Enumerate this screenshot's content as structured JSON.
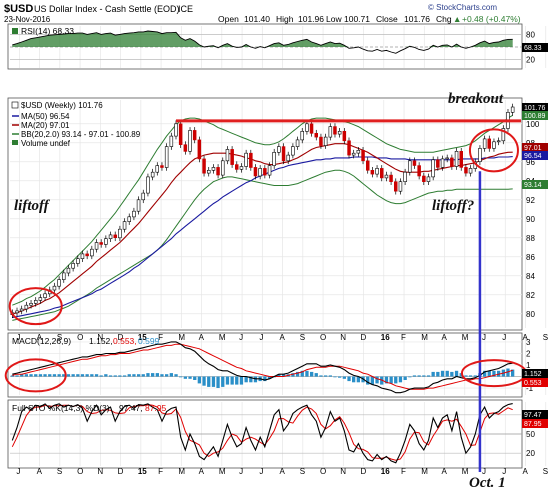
{
  "header": {
    "symbol": "$USD",
    "name": "US Dollar Index - Cash Settle (EOD)",
    "exchange": "ICE",
    "date": "23-Nov-2016",
    "open_label": "Open",
    "open": "101.40",
    "high_label": "High",
    "high": "101.96",
    "low_label": "Low",
    "low": "100.71",
    "close_label": "Close",
    "close": "101.76",
    "chg_label": "Chg",
    "chg": "+0.48 (+0.47%)",
    "brand": "© StockCharts.com",
    "chg_arrow": "▲"
  },
  "colors": {
    "candle_up": "#ffffff",
    "candle_down": "#cc0000",
    "candle_edge": "#000000",
    "ma50": "#1a1aa0",
    "ma20": "#a00000",
    "bb": "#2e7d32",
    "rsi_fill": "#2e7d32",
    "macd_hist": "#2a8fc8",
    "macd_signal": "#e00000",
    "resistance": "#e02020",
    "marker": "#3333cc",
    "ellipse": "#e01818"
  },
  "rsi_panel": {
    "legend": "RSI(14) 68.33",
    "last": "68.33",
    "ticks": [
      "80",
      "50",
      "20"
    ]
  },
  "price_panel": {
    "legend_symbol": "$USD (Weekly) 101.76",
    "legend_ma50": "MA(50) 96.54",
    "legend_ma20": "MA(20) 97.01",
    "legend_bb": "BB(20,2.0) 93.14 - 97.01 - 100.89",
    "legend_volume": "Volume undef",
    "right_badges": [
      "101.76",
      "100.89",
      "97.01",
      "96.54",
      "93.14"
    ],
    "ticks": [
      "100",
      "98",
      "96",
      "94",
      "92",
      "90",
      "88",
      "86",
      "84",
      "82",
      "80"
    ]
  },
  "macd_panel": {
    "legend_prefix": "MACD(12,26,9)",
    "legend_macd": "1.152,",
    "legend_signal": "0.553,",
    "legend_hist": "0.599",
    "ticks": [
      "3",
      "2",
      "1",
      "0",
      "-1"
    ],
    "badges": [
      "1.152",
      "0.553"
    ]
  },
  "sto_panel": {
    "legend_prefix": "Full STO %K(14,3) %D(3)",
    "legend_k": "97.47,",
    "legend_d": "87.95",
    "ticks": [
      "80",
      "50",
      "20"
    ],
    "badges": [
      "97.47",
      "87.95"
    ]
  },
  "annotations": {
    "liftoff_left": "liftoff",
    "breakout": "breakout",
    "liftoff_right": "liftoff?",
    "oct1": "Oct. 1"
  },
  "x_axis_labels": [
    "J",
    "A",
    "S",
    "O",
    "N",
    "D",
    "15",
    "F",
    "M",
    "A",
    "M",
    "J",
    "J",
    "A",
    "S",
    "O",
    "N",
    "D",
    "16",
    "F",
    "M",
    "A",
    "M",
    "J",
    "J",
    "A",
    "S",
    "O",
    "N"
  ],
  "chart_data": {
    "type": "candlestick",
    "title": "$USD US Dollar Index - Cash Settle (EOD)",
    "interval": "Weekly",
    "x_months": [
      "J",
      "A",
      "S",
      "O",
      "N",
      "D",
      "15",
      "F",
      "M",
      "A",
      "M",
      "J",
      "J",
      "A",
      "S",
      "O",
      "N",
      "D",
      "16",
      "F",
      "M",
      "A",
      "M",
      "J",
      "J",
      "A",
      "S",
      "O",
      "N"
    ],
    "price_ylim": [
      78.5,
      102.5
    ],
    "price_ticks": [
      80,
      82,
      84,
      86,
      88,
      90,
      92,
      94,
      96,
      98,
      100
    ],
    "resistance_level": 100.3,
    "last_values": {
      "close": 101.76,
      "ma50": 96.54,
      "ma20": 97.01,
      "bb_lower": 93.14,
      "bb_mid": 97.01,
      "bb_upper": 100.89
    },
    "close_series": [
      80.1,
      80.3,
      80.5,
      80.9,
      81.1,
      81.4,
      81.7,
      82.1,
      82.5,
      82.9,
      83.6,
      84.3,
      84.8,
      85.3,
      85.8,
      86.3,
      86.1,
      86.8,
      87.5,
      87.3,
      87.9,
      88.3,
      88.0,
      88.9,
      89.7,
      90.2,
      90.8,
      92.0,
      92.7,
      94.4,
      94.9,
      95.6,
      95.4,
      97.6,
      98.7,
      100.0,
      97.8,
      97.1,
      99.3,
      98.3,
      96.3,
      94.8,
      95.1,
      95.4,
      94.6,
      96.1,
      97.3,
      95.7,
      95.2,
      95.5,
      96.9,
      95.4,
      94.5,
      95.3,
      94.6,
      95.6,
      97.0,
      97.6,
      96.1,
      96.7,
      97.6,
      98.3,
      99.2,
      100.0,
      99.0,
      98.6,
      97.7,
      98.6,
      99.7,
      98.9,
      99.2,
      98.2,
      96.7,
      96.9,
      97.2,
      96.1,
      95.1,
      94.7,
      95.3,
      94.3,
      94.6,
      93.9,
      92.9,
      93.9,
      94.9,
      96.1,
      95.6,
      94.5,
      93.9,
      94.4,
      96.2,
      95.4,
      96.3,
      96.4,
      95.5,
      97.1,
      95.4,
      94.8,
      95.3,
      96.0,
      97.4,
      98.4,
      97.4,
      98.1,
      98.2,
      99.5,
      101.2,
      101.76
    ],
    "ma20": [
      80.0,
      80.1,
      80.3,
      80.5,
      80.7,
      80.9,
      81.1,
      81.4,
      81.6,
      81.9,
      82.2,
      82.6,
      83.0,
      83.4,
      83.8,
      84.2,
      84.6,
      85.0,
      85.5,
      85.9,
      86.3,
      86.7,
      87.1,
      87.5,
      88.0,
      88.5,
      89.0,
      89.5,
      90.1,
      90.7,
      91.3,
      91.9,
      92.5,
      93.1,
      93.8,
      94.4,
      94.9,
      95.4,
      95.9,
      96.3,
      96.5,
      96.7,
      96.8,
      96.9,
      96.9,
      96.9,
      96.9,
      96.8,
      96.7,
      96.6,
      96.4,
      96.3,
      96.1,
      96.0,
      95.8,
      95.7,
      95.7,
      95.8,
      95.9,
      96.0,
      96.2,
      96.4,
      96.7,
      97.0,
      97.3,
      97.5,
      97.6,
      97.7,
      97.8,
      97.9,
      97.9,
      97.9,
      97.8,
      97.6,
      97.4,
      97.2,
      97.0,
      96.7,
      96.4,
      96.1,
      95.8,
      95.5,
      95.2,
      95.0,
      94.9,
      94.9,
      94.9,
      94.9,
      95.0,
      95.0,
      95.1,
      95.2,
      95.3,
      95.4,
      95.5,
      95.6,
      95.6,
      95.7,
      95.8,
      95.9,
      96.1,
      96.3,
      96.5,
      96.6,
      96.8,
      96.9,
      97.0,
      97.01
    ],
    "ma50": [
      79.6,
      79.7,
      79.8,
      79.9,
      80.0,
      80.1,
      80.2,
      80.3,
      80.4,
      80.6,
      80.7,
      80.9,
      81.1,
      81.3,
      81.5,
      81.7,
      81.9,
      82.1,
      82.4,
      82.6,
      82.9,
      83.2,
      83.5,
      83.8,
      84.1,
      84.4,
      84.8,
      85.1,
      85.5,
      85.9,
      86.3,
      86.7,
      87.1,
      87.5,
      87.9,
      88.4,
      88.8,
      89.2,
      89.6,
      90.0,
      90.4,
      90.8,
      91.2,
      91.6,
      91.9,
      92.3,
      92.6,
      92.9,
      93.2,
      93.5,
      93.8,
      94.0,
      94.3,
      94.5,
      94.7,
      94.9,
      95.1,
      95.3,
      95.4,
      95.6,
      95.7,
      95.8,
      95.9,
      96.0,
      96.1,
      96.2,
      96.2,
      96.3,
      96.3,
      96.4,
      96.4,
      96.4,
      96.4,
      96.5,
      96.5,
      96.5,
      96.5,
      96.5,
      96.4,
      96.4,
      96.4,
      96.3,
      96.3,
      96.3,
      96.3,
      96.2,
      96.2,
      96.2,
      96.2,
      96.2,
      96.2,
      96.2,
      96.2,
      96.2,
      96.2,
      96.2,
      96.3,
      96.3,
      96.3,
      96.3,
      96.3,
      96.4,
      96.4,
      96.4,
      96.5,
      96.5,
      96.5,
      96.54
    ],
    "bb_upper": [
      80.9,
      81.1,
      81.3,
      81.6,
      81.8,
      82.1,
      82.4,
      82.8,
      83.2,
      83.6,
      84.1,
      84.6,
      85.1,
      85.6,
      86.1,
      86.6,
      87.1,
      87.6,
      88.2,
      88.8,
      89.4,
      90.0,
      90.6,
      91.3,
      92.0,
      92.7,
      93.4,
      94.1,
      94.9,
      95.7,
      96.5,
      97.3,
      98.0,
      98.7,
      99.3,
      99.9,
      100.3,
      100.5,
      100.6,
      100.6,
      100.5,
      100.3,
      100.1,
      99.9,
      99.6,
      99.4,
      99.2,
      99.0,
      98.8,
      98.6,
      98.4,
      98.2,
      98.0,
      97.9,
      97.8,
      97.8,
      97.9,
      98.1,
      98.4,
      98.8,
      99.2,
      99.6,
      100.0,
      100.3,
      100.5,
      100.6,
      100.6,
      100.6,
      100.5,
      100.4,
      100.3,
      100.2,
      100.1,
      99.9,
      99.7,
      99.4,
      99.1,
      98.8,
      98.5,
      98.2,
      97.9,
      97.7,
      97.5,
      97.3,
      97.2,
      97.1,
      97.0,
      97.0,
      97.0,
      97.0,
      97.0,
      97.1,
      97.2,
      97.3,
      97.4,
      97.5,
      97.6,
      97.7,
      97.9,
      98.2,
      98.6,
      99.0,
      99.3,
      99.6,
      99.9,
      100.2,
      100.6,
      100.89
    ],
    "bb_lower": [
      79.3,
      79.4,
      79.5,
      79.6,
      79.7,
      79.8,
      79.9,
      80.0,
      80.1,
      80.2,
      80.4,
      80.6,
      80.8,
      81.1,
      81.4,
      81.7,
      82.0,
      82.3,
      82.7,
      83.0,
      83.3,
      83.6,
      83.9,
      84.2,
      84.5,
      84.8,
      85.1,
      85.4,
      85.7,
      86.0,
      86.3,
      86.7,
      87.2,
      87.8,
      88.5,
      89.2,
      89.9,
      90.6,
      91.3,
      92.0,
      92.6,
      93.1,
      93.5,
      93.9,
      94.1,
      94.3,
      94.4,
      94.4,
      94.3,
      94.2,
      94.1,
      94.0,
      93.9,
      93.8,
      93.7,
      93.6,
      93.5,
      93.5,
      93.5,
      93.5,
      93.6,
      93.7,
      93.9,
      94.1,
      94.3,
      94.5,
      94.7,
      94.9,
      95.0,
      95.1,
      95.1,
      95.0,
      94.8,
      94.5,
      94.1,
      93.7,
      93.3,
      92.9,
      92.5,
      92.2,
      91.9,
      91.7,
      91.6,
      91.6,
      91.7,
      91.9,
      92.1,
      92.3,
      92.5,
      92.7,
      92.8,
      92.9,
      92.9,
      93.0,
      93.0,
      93.1,
      93.1,
      93.1,
      93.1,
      93.1,
      93.1,
      93.1,
      93.1,
      93.1,
      93.1,
      93.1,
      93.1,
      93.14
    ],
    "rsi": [
      55,
      58,
      62,
      66,
      70,
      72,
      74,
      76,
      78,
      79,
      80,
      81,
      82,
      82,
      83,
      83,
      80,
      82,
      84,
      80,
      82,
      83,
      78,
      80,
      82,
      83,
      84,
      86,
      86,
      88,
      87,
      86,
      82,
      84,
      84,
      85,
      72,
      66,
      70,
      64,
      55,
      50,
      52,
      53,
      48,
      54,
      58,
      52,
      49,
      50,
      56,
      50,
      47,
      51,
      48,
      53,
      58,
      60,
      54,
      56,
      60,
      63,
      66,
      68,
      62,
      58,
      54,
      58,
      62,
      58,
      59,
      54,
      47,
      48,
      50,
      45,
      41,
      40,
      44,
      40,
      42,
      38,
      35,
      41,
      46,
      52,
      49,
      44,
      42,
      45,
      54,
      50,
      54,
      55,
      50,
      57,
      50,
      47,
      50,
      54,
      60,
      64,
      58,
      61,
      62,
      66,
      68,
      68.33
    ],
    "rsi_ylim": [
      0,
      100
    ],
    "macd": [
      0.2,
      0.3,
      0.4,
      0.5,
      0.6,
      0.7,
      0.8,
      0.9,
      1.0,
      1.1,
      1.2,
      1.3,
      1.4,
      1.5,
      1.6,
      1.7,
      1.7,
      1.8,
      1.9,
      1.9,
      2.0,
      2.0,
      2.0,
      2.1,
      2.1,
      2.2,
      2.3,
      2.4,
      2.5,
      2.6,
      2.7,
      2.8,
      2.8,
      2.9,
      3.0,
      3.0,
      2.8,
      2.5,
      2.4,
      2.2,
      1.8,
      1.4,
      1.1,
      0.9,
      0.6,
      0.5,
      0.5,
      0.3,
      0.1,
      0.0,
      0.0,
      -0.1,
      -0.2,
      -0.2,
      -0.3,
      -0.2,
      0.0,
      0.2,
      0.2,
      0.3,
      0.5,
      0.7,
      0.9,
      1.1,
      1.1,
      1.1,
      0.9,
      0.9,
      1.0,
      0.9,
      0.8,
      0.6,
      0.3,
      0.1,
      0.0,
      -0.2,
      -0.5,
      -0.7,
      -0.8,
      -1.0,
      -1.1,
      -1.2,
      -1.4,
      -1.4,
      -1.3,
      -1.1,
      -1.0,
      -1.0,
      -1.0,
      -0.9,
      -0.6,
      -0.5,
      -0.3,
      -0.2,
      -0.2,
      0.0,
      -0.1,
      -0.2,
      -0.2,
      -0.1,
      0.1,
      0.4,
      0.5,
      0.6,
      0.7,
      0.9,
      1.1,
      1.152
    ],
    "macd_signal": [
      0.1,
      0.2,
      0.2,
      0.3,
      0.4,
      0.5,
      0.6,
      0.7,
      0.8,
      0.9,
      1.0,
      1.1,
      1.2,
      1.3,
      1.4,
      1.5,
      1.5,
      1.6,
      1.7,
      1.8,
      1.8,
      1.9,
      1.9,
      2.0,
      2.0,
      2.0,
      2.1,
      2.2,
      2.3,
      2.3,
      2.4,
      2.5,
      2.6,
      2.7,
      2.7,
      2.8,
      2.8,
      2.7,
      2.6,
      2.5,
      2.4,
      2.2,
      2.0,
      1.8,
      1.6,
      1.4,
      1.2,
      1.0,
      0.8,
      0.7,
      0.5,
      0.4,
      0.3,
      0.2,
      0.1,
      0.0,
      0.0,
      0.0,
      0.0,
      0.1,
      0.2,
      0.3,
      0.4,
      0.6,
      0.7,
      0.8,
      0.8,
      0.8,
      0.9,
      0.9,
      0.9,
      0.8,
      0.7,
      0.6,
      0.5,
      0.3,
      0.2,
      0.0,
      -0.2,
      -0.3,
      -0.5,
      -0.6,
      -0.8,
      -0.9,
      -1.0,
      -1.1,
      -1.1,
      -1.1,
      -1.1,
      -1.0,
      -1.0,
      -0.9,
      -0.8,
      -0.7,
      -0.6,
      -0.5,
      -0.4,
      -0.3,
      -0.3,
      -0.2,
      -0.2,
      -0.1,
      0.0,
      0.1,
      0.2,
      0.3,
      0.4,
      0.553
    ],
    "macd_ylim": [
      -1.6,
      3.6
    ],
    "sto_k": [
      40,
      60,
      85,
      92,
      88,
      95,
      93,
      97,
      90,
      95,
      97,
      92,
      95,
      93,
      96,
      90,
      70,
      85,
      95,
      80,
      88,
      92,
      70,
      85,
      93,
      95,
      90,
      96,
      95,
      97,
      92,
      88,
      70,
      85,
      90,
      92,
      45,
      25,
      50,
      35,
      15,
      10,
      20,
      30,
      15,
      40,
      65,
      45,
      30,
      35,
      60,
      40,
      25,
      45,
      30,
      55,
      80,
      88,
      55,
      65,
      82,
      88,
      92,
      95,
      80,
      70,
      45,
      60,
      85,
      70,
      75,
      55,
      25,
      22,
      35,
      20,
      10,
      8,
      18,
      10,
      15,
      8,
      5,
      20,
      40,
      65,
      55,
      35,
      25,
      40,
      75,
      60,
      75,
      80,
      55,
      85,
      45,
      20,
      30,
      50,
      80,
      92,
      75,
      82,
      85,
      92,
      96,
      97.47
    ],
    "sto_d": [
      30,
      45,
      62,
      79,
      88,
      92,
      92,
      95,
      93,
      94,
      94,
      95,
      95,
      93,
      95,
      93,
      85,
      82,
      83,
      87,
      88,
      87,
      83,
      82,
      83,
      91,
      93,
      94,
      94,
      96,
      95,
      92,
      83,
      81,
      82,
      89,
      76,
      54,
      40,
      37,
      33,
      20,
      15,
      20,
      22,
      28,
      40,
      50,
      47,
      37,
      42,
      45,
      42,
      37,
      33,
      43,
      55,
      74,
      74,
      69,
      67,
      78,
      87,
      92,
      89,
      82,
      65,
      58,
      63,
      72,
      77,
      67,
      52,
      34,
      27,
      26,
      22,
      13,
      12,
      12,
      14,
      11,
      9,
      11,
      22,
      42,
      53,
      52,
      38,
      33,
      47,
      58,
      70,
      72,
      70,
      73,
      62,
      50,
      32,
      33,
      53,
      74,
      82,
      83,
      81,
      86,
      91,
      87.95
    ],
    "sto_ylim": [
      0,
      100
    ]
  }
}
